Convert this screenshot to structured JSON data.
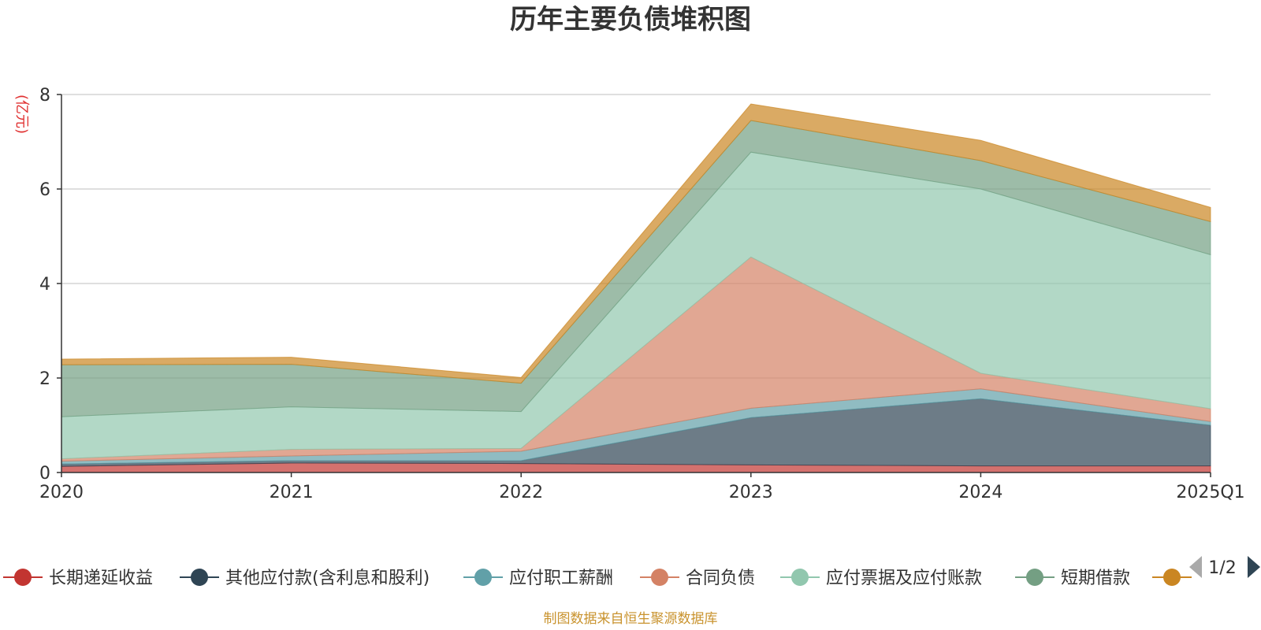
{
  "chart_data": {
    "type": "area",
    "title": "历年主要负债堆积图",
    "unit_label": "(亿元)",
    "categories": [
      "2020",
      "2021",
      "2022",
      "2023",
      "2024",
      "2025Q1"
    ],
    "ylim": [
      0,
      8
    ],
    "yticks": [
      0,
      2,
      4,
      6,
      8
    ],
    "grid": true,
    "stacked": true,
    "legend_position": "bottom",
    "series": [
      {
        "name": "长期递延收益",
        "color": "#c23531",
        "values": [
          0.13,
          0.2,
          0.19,
          0.16,
          0.14,
          0.14
        ]
      },
      {
        "name": "其他应付款(含利息和股利)",
        "color": "#2f4554",
        "values": [
          0.05,
          0.05,
          0.06,
          1.0,
          1.42,
          0.86
        ]
      },
      {
        "name": "应付职工薪酬",
        "color": "#61a0a8",
        "values": [
          0.06,
          0.1,
          0.2,
          0.2,
          0.21,
          0.08
        ]
      },
      {
        "name": "合同负债",
        "color": "#d48265",
        "values": [
          0.05,
          0.14,
          0.06,
          3.2,
          0.33,
          0.27
        ]
      },
      {
        "name": "应付票据及应付账款",
        "color": "#91c7ae",
        "values": [
          0.89,
          0.9,
          0.78,
          2.22,
          3.9,
          3.26
        ]
      },
      {
        "name": "短期借款",
        "color": "#749f83",
        "values": [
          1.1,
          0.9,
          0.6,
          0.67,
          0.6,
          0.7
        ]
      },
      {
        "name": "",
        "color": "#ca8622",
        "values": [
          0.12,
          0.15,
          0.12,
          0.35,
          0.43,
          0.3
        ]
      }
    ]
  },
  "legend_pager": {
    "text": "1/2"
  },
  "footer": {
    "source": "制图数据来自恒生聚源数据库"
  }
}
